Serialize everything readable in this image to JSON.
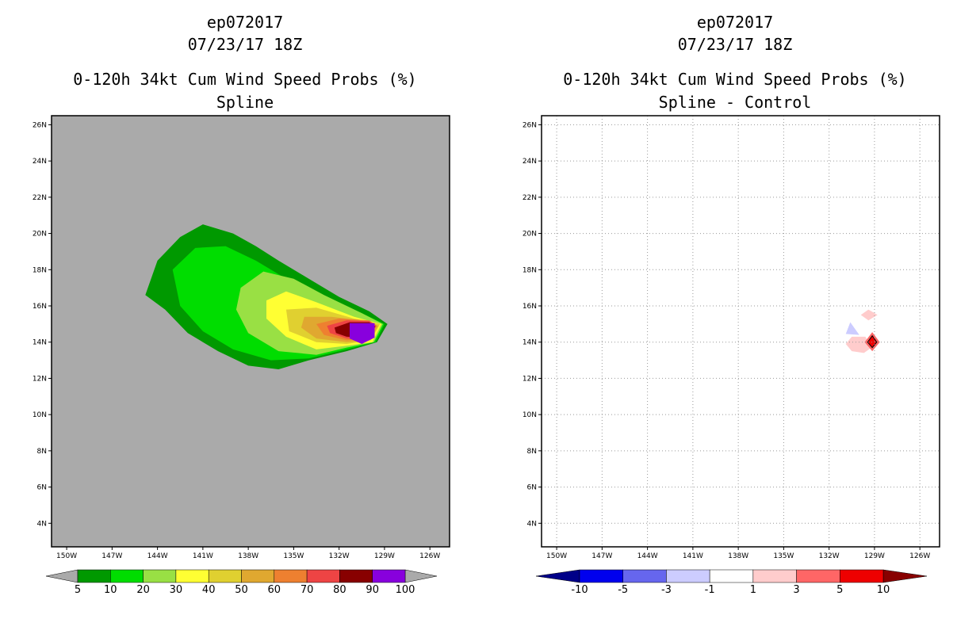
{
  "left_panel": {
    "title_line1": "ep072017",
    "title_line2": "07/23/17 18Z",
    "title_line3": "0-120h 34kt Cum Wind Speed Probs (%)",
    "title_line4": "Spline"
  },
  "right_panel": {
    "title_line1": "ep072017",
    "title_line2": "07/23/17 18Z",
    "title_line3": "0-120h 34kt Cum Wind Speed Probs (%)",
    "title_line4": "Spline - Control"
  },
  "chart_data": [
    {
      "type": "heatmap",
      "title": "0-120h 34kt Cum Wind Speed Probs (%)",
      "subtitle": "Spline",
      "storm": "ep072017",
      "valid_time": "07/23/17 18Z",
      "lon_ticks": [
        "150W",
        "147W",
        "144W",
        "141W",
        "138W",
        "135W",
        "132W",
        "129W",
        "126W"
      ],
      "lat_ticks": [
        "26N",
        "24N",
        "22N",
        "20N",
        "18N",
        "16N",
        "14N",
        "12N",
        "10N",
        "8N",
        "6N",
        "4N"
      ],
      "lon_range": [
        -151,
        -124.7
      ],
      "lat_range": [
        2.7,
        26.5
      ],
      "colorbar": {
        "labels": [
          "5",
          "10",
          "20",
          "30",
          "40",
          "50",
          "60",
          "70",
          "80",
          "90",
          "100"
        ],
        "colors": [
          "#009900",
          "#00dd00",
          "#99e044",
          "#ffff33",
          "#e0d030",
          "#e0a830",
          "#ee8030",
          "#ee4444",
          "#880000",
          "#8800dd"
        ],
        "under_color": "#aaaaaa",
        "over_color": "#aaaaaa"
      },
      "background_color": "#aaaaaa",
      "contours": [
        {
          "level": "5",
          "color": "#009900",
          "points": [
            [
              -144.8,
              16.6
            ],
            [
              -144.0,
              18.5
            ],
            [
              -142.5,
              19.8
            ],
            [
              -141.0,
              20.5
            ],
            [
              -139.0,
              20.0
            ],
            [
              -137.5,
              19.3
            ],
            [
              -136.0,
              18.5
            ],
            [
              -134.0,
              17.5
            ],
            [
              -132.0,
              16.5
            ],
            [
              -130.0,
              15.7
            ],
            [
              -128.8,
              15.0
            ],
            [
              -129.5,
              14.0
            ],
            [
              -131.5,
              13.5
            ],
            [
              -134.0,
              13.0
            ],
            [
              -136.0,
              12.5
            ],
            [
              -138.0,
              12.7
            ],
            [
              -140.0,
              13.5
            ],
            [
              -142.0,
              14.5
            ],
            [
              -143.5,
              15.8
            ]
          ]
        },
        {
          "level": "10",
          "color": "#00dd00",
          "points": [
            [
              -143.0,
              18.0
            ],
            [
              -141.5,
              19.2
            ],
            [
              -139.5,
              19.3
            ],
            [
              -137.5,
              18.5
            ],
            [
              -135.5,
              17.5
            ],
            [
              -133.0,
              16.5
            ],
            [
              -130.5,
              15.6
            ],
            [
              -129.0,
              15.0
            ],
            [
              -129.6,
              14.0
            ],
            [
              -131.5,
              13.6
            ],
            [
              -134.0,
              13.1
            ],
            [
              -136.5,
              13.0
            ],
            [
              -139.0,
              13.6
            ],
            [
              -141.0,
              14.6
            ],
            [
              -142.5,
              16.0
            ]
          ]
        },
        {
          "level": "20",
          "color": "#99e044",
          "points": [
            [
              -138.5,
              17.0
            ],
            [
              -137.0,
              17.9
            ],
            [
              -135.0,
              17.5
            ],
            [
              -133.0,
              16.6
            ],
            [
              -130.5,
              15.6
            ],
            [
              -129.1,
              15.0
            ],
            [
              -129.7,
              14.0
            ],
            [
              -131.5,
              13.7
            ],
            [
              -133.5,
              13.3
            ],
            [
              -136.0,
              13.5
            ],
            [
              -138.0,
              14.5
            ],
            [
              -138.8,
              15.8
            ]
          ]
        },
        {
          "level": "30",
          "color": "#ffff33",
          "points": [
            [
              -136.8,
              16.3
            ],
            [
              -135.5,
              16.8
            ],
            [
              -133.5,
              16.2
            ],
            [
              -131.0,
              15.4
            ],
            [
              -129.2,
              15.0
            ],
            [
              -129.8,
              14.0
            ],
            [
              -131.5,
              13.8
            ],
            [
              -133.5,
              13.6
            ],
            [
              -135.5,
              14.3
            ],
            [
              -136.8,
              15.3
            ]
          ]
        },
        {
          "level": "40",
          "color": "#e0d030",
          "points": [
            [
              -135.5,
              15.8
            ],
            [
              -133.5,
              15.9
            ],
            [
              -131.0,
              15.3
            ],
            [
              -129.3,
              15.0
            ],
            [
              -129.9,
              14.1
            ],
            [
              -131.5,
              13.9
            ],
            [
              -133.5,
              14.0
            ],
            [
              -135.3,
              14.6
            ]
          ]
        },
        {
          "level": "50",
          "color": "#e0a830",
          "points": [
            [
              -134.3,
              15.4
            ],
            [
              -132.5,
              15.4
            ],
            [
              -130.5,
              15.2
            ],
            [
              -129.4,
              14.9
            ],
            [
              -130.0,
              14.1
            ],
            [
              -131.5,
              14.0
            ],
            [
              -133.5,
              14.2
            ],
            [
              -134.5,
              14.8
            ]
          ]
        },
        {
          "level": "60",
          "color": "#ee8030",
          "points": [
            [
              -133.5,
              15.0
            ],
            [
              -132.0,
              15.3
            ],
            [
              -130.0,
              15.2
            ],
            [
              -129.5,
              14.9
            ],
            [
              -130.1,
              14.2
            ],
            [
              -131.5,
              14.1
            ],
            [
              -133.0,
              14.4
            ]
          ]
        },
        {
          "level": "70",
          "color": "#ee4444",
          "points": [
            [
              -132.8,
              14.9
            ],
            [
              -131.5,
              15.2
            ],
            [
              -130.0,
              15.15
            ],
            [
              -129.55,
              14.9
            ],
            [
              -130.2,
              14.2
            ],
            [
              -131.5,
              14.2
            ],
            [
              -132.6,
              14.5
            ]
          ]
        },
        {
          "level": "80",
          "color": "#880000",
          "points": [
            [
              -132.3,
              14.8
            ],
            [
              -131.3,
              15.1
            ],
            [
              -130.0,
              15.1
            ],
            [
              -129.6,
              14.85
            ],
            [
              -130.3,
              14.25
            ],
            [
              -131.5,
              14.3
            ],
            [
              -132.2,
              14.5
            ]
          ]
        },
        {
          "level": "90",
          "color": "#8800dd",
          "points": [
            [
              -131.3,
              15.05
            ],
            [
              -129.65,
              15.05
            ],
            [
              -129.65,
              14.25
            ],
            [
              -130.5,
              13.9
            ],
            [
              -131.3,
              14.2
            ]
          ]
        }
      ]
    },
    {
      "type": "heatmap",
      "title": "0-120h 34kt Cum Wind Speed Probs (%)",
      "subtitle": "Spline - Control",
      "storm": "ep072017",
      "valid_time": "07/23/17 18Z",
      "lon_ticks": [
        "150W",
        "147W",
        "144W",
        "141W",
        "138W",
        "135W",
        "132W",
        "129W",
        "126W"
      ],
      "lat_ticks": [
        "26N",
        "24N",
        "22N",
        "20N",
        "18N",
        "16N",
        "14N",
        "12N",
        "10N",
        "8N",
        "6N",
        "4N"
      ],
      "lon_range": [
        -151,
        -124.7
      ],
      "lat_range": [
        2.7,
        26.5
      ],
      "grid": true,
      "colorbar": {
        "labels": [
          "-10",
          "-5",
          "-3",
          "-1",
          "1",
          "3",
          "5",
          "10"
        ],
        "colors": [
          "#0000ee",
          "#6666ee",
          "#ccccff",
          "#ffffff",
          "#ffcccc",
          "#ff6666",
          "#ee0000"
        ],
        "under_color": "#000088",
        "over_color": "#880000"
      },
      "background_color": "#ffffff",
      "contours": [
        {
          "level": "-3",
          "color": "#ccccff",
          "points": [
            [
              -130.6,
              15.1
            ],
            [
              -130.0,
              14.4
            ],
            [
              -130.9,
              14.45
            ]
          ]
        },
        {
          "level": "3",
          "color": "#ffcccc",
          "points": [
            [
              -129.4,
              15.8
            ],
            [
              -128.8,
              15.5
            ],
            [
              -129.4,
              15.2
            ],
            [
              -129.9,
              15.5
            ]
          ]
        },
        {
          "level": "3b",
          "color": "#ffcccc",
          "points": [
            [
              -130.5,
              14.3
            ],
            [
              -129.6,
              14.3
            ],
            [
              -129.2,
              13.7
            ],
            [
              -129.7,
              13.4
            ],
            [
              -130.5,
              13.5
            ],
            [
              -130.9,
              13.9
            ]
          ]
        },
        {
          "level": "5",
          "color": "#ff6666",
          "points": [
            [
              -129.15,
              14.55
            ],
            [
              -128.65,
              14.0
            ],
            [
              -129.15,
              13.5
            ],
            [
              -129.65,
              14.0
            ]
          ]
        },
        {
          "level": "10",
          "color": "#ee0000",
          "points": [
            [
              -129.15,
              14.35
            ],
            [
              -128.85,
              14.0
            ],
            [
              -129.15,
              13.7
            ],
            [
              -129.45,
              14.0
            ]
          ]
        }
      ]
    }
  ]
}
